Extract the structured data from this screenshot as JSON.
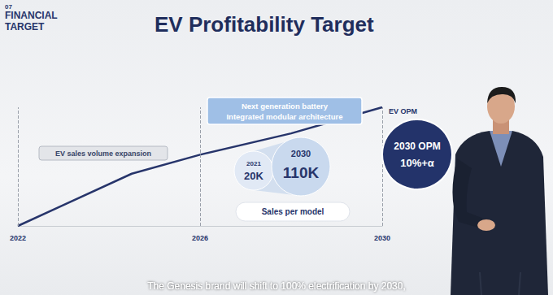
{
  "header": {
    "section": "07",
    "label": "FINANCIAL TARGET"
  },
  "chart_data": {
    "type": "line",
    "title": "EV Profitability Target",
    "x": [
      2022,
      2024.5,
      2026,
      2028,
      2029,
      2030
    ],
    "values": [
      0,
      44,
      60,
      78,
      89,
      100
    ],
    "color": "#27356b",
    "xlim": [
      2022,
      2030
    ],
    "ylim": [
      0,
      100
    ],
    "xticks": [
      2022,
      2026,
      2030
    ],
    "grid": true,
    "tick_labels": "x",
    "series_label": "EV OPM",
    "annotations": [
      {
        "text": "EV sales volume expansion"
      },
      {
        "text": "Next generation battery\nIntegrated modular architecture"
      }
    ],
    "sales_per_model": {
      "label": "Sales per model",
      "items": [
        {
          "year": "2021",
          "value": "20K"
        },
        {
          "year": "2030",
          "value": "110K"
        }
      ]
    },
    "opm_target": {
      "label": "2030 OPM",
      "value": "10%+α"
    }
  },
  "caption": "The Genesis brand will shift to 100% electrification by 2030,"
}
